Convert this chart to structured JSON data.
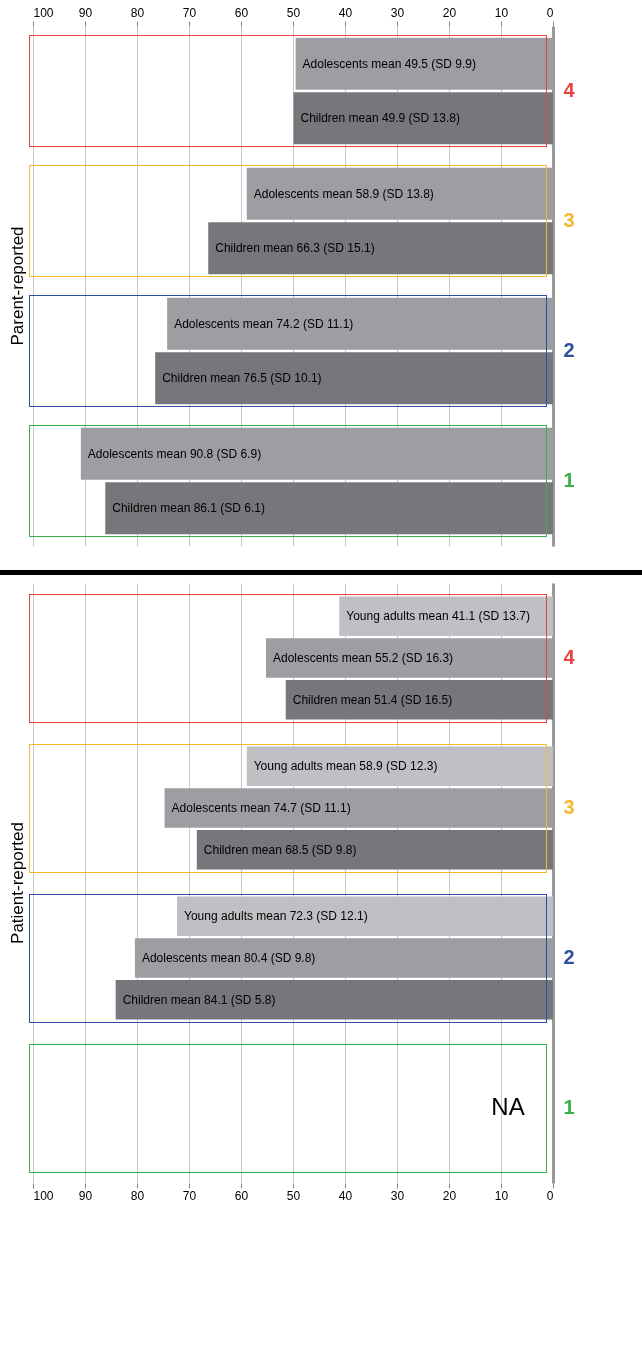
{
  "chart_data": [
    {
      "type": "bar",
      "orientation": "horizontal",
      "title": "Parent-reported",
      "categories": [
        "4",
        "3",
        "2",
        "1"
      ],
      "series": [
        {
          "color": "#9d9ea2",
          "values": [
            49.5,
            58.9,
            74.2,
            90.8
          ],
          "value_labels": [
            "Adolescents mean 49.5 (SD 9.9)",
            "Adolescents mean 58.9 (SD 13.8)",
            "Adolescents mean 74.2 (SD 11.1)",
            "Adolescents mean 90.8 (SD 6.9)"
          ]
        },
        {
          "color": "#76777b",
          "values": [
            49.9,
            66.3,
            76.5,
            86.1
          ],
          "value_labels": [
            "Children mean 49.9 (SD 13.8)",
            "Children mean 66.3 (SD 15.1)",
            "Children mean 76.5 (SD 10.1)",
            "Children mean 86.1 (SD 6.1)"
          ]
        }
      ],
      "xlim": [
        100,
        0
      ],
      "xticks": [
        0,
        10,
        20,
        30,
        40,
        50,
        60,
        70,
        80,
        90,
        100
      ],
      "grid": "x",
      "legend": false
    },
    {
      "type": "bar",
      "orientation": "horizontal",
      "title": "Patient-reported",
      "categories": [
        "4",
        "3",
        "2",
        "1"
      ],
      "series": [
        {
          "color": "#bfc0c3",
          "values": [
            41.1,
            58.9,
            72.3,
            null
          ],
          "value_labels": [
            "Young adults mean 41.1 (SD 13.7)",
            "Young adults mean 58.9 (SD 12.3)",
            "Young adults mean 72.3 (SD 12.1)",
            null
          ]
        },
        {
          "color": "#9d9ea2",
          "values": [
            55.2,
            74.7,
            80.4,
            null
          ],
          "value_labels": [
            "Adolescents mean 55.2 (SD 16.3)",
            "Adolescents mean 74.7 (SD 11.1)",
            "Adolescents mean 80.4 (SD 9.8)",
            null
          ]
        },
        {
          "color": "#76777b",
          "values": [
            51.4,
            68.5,
            84.1,
            null
          ],
          "value_labels": [
            "Children mean 51.4 (SD 16.5)",
            "Children mean 68.5 (SD 9.8)",
            "Children mean 84.1 (SD 5.8)",
            null
          ]
        }
      ],
      "xlim": [
        100,
        0
      ],
      "xticks": [
        0,
        10,
        20,
        30,
        40,
        50,
        60,
        70,
        80,
        90,
        100
      ],
      "grid": "x",
      "legend": false,
      "annotations": [
        "NA"
      ]
    }
  ]
}
